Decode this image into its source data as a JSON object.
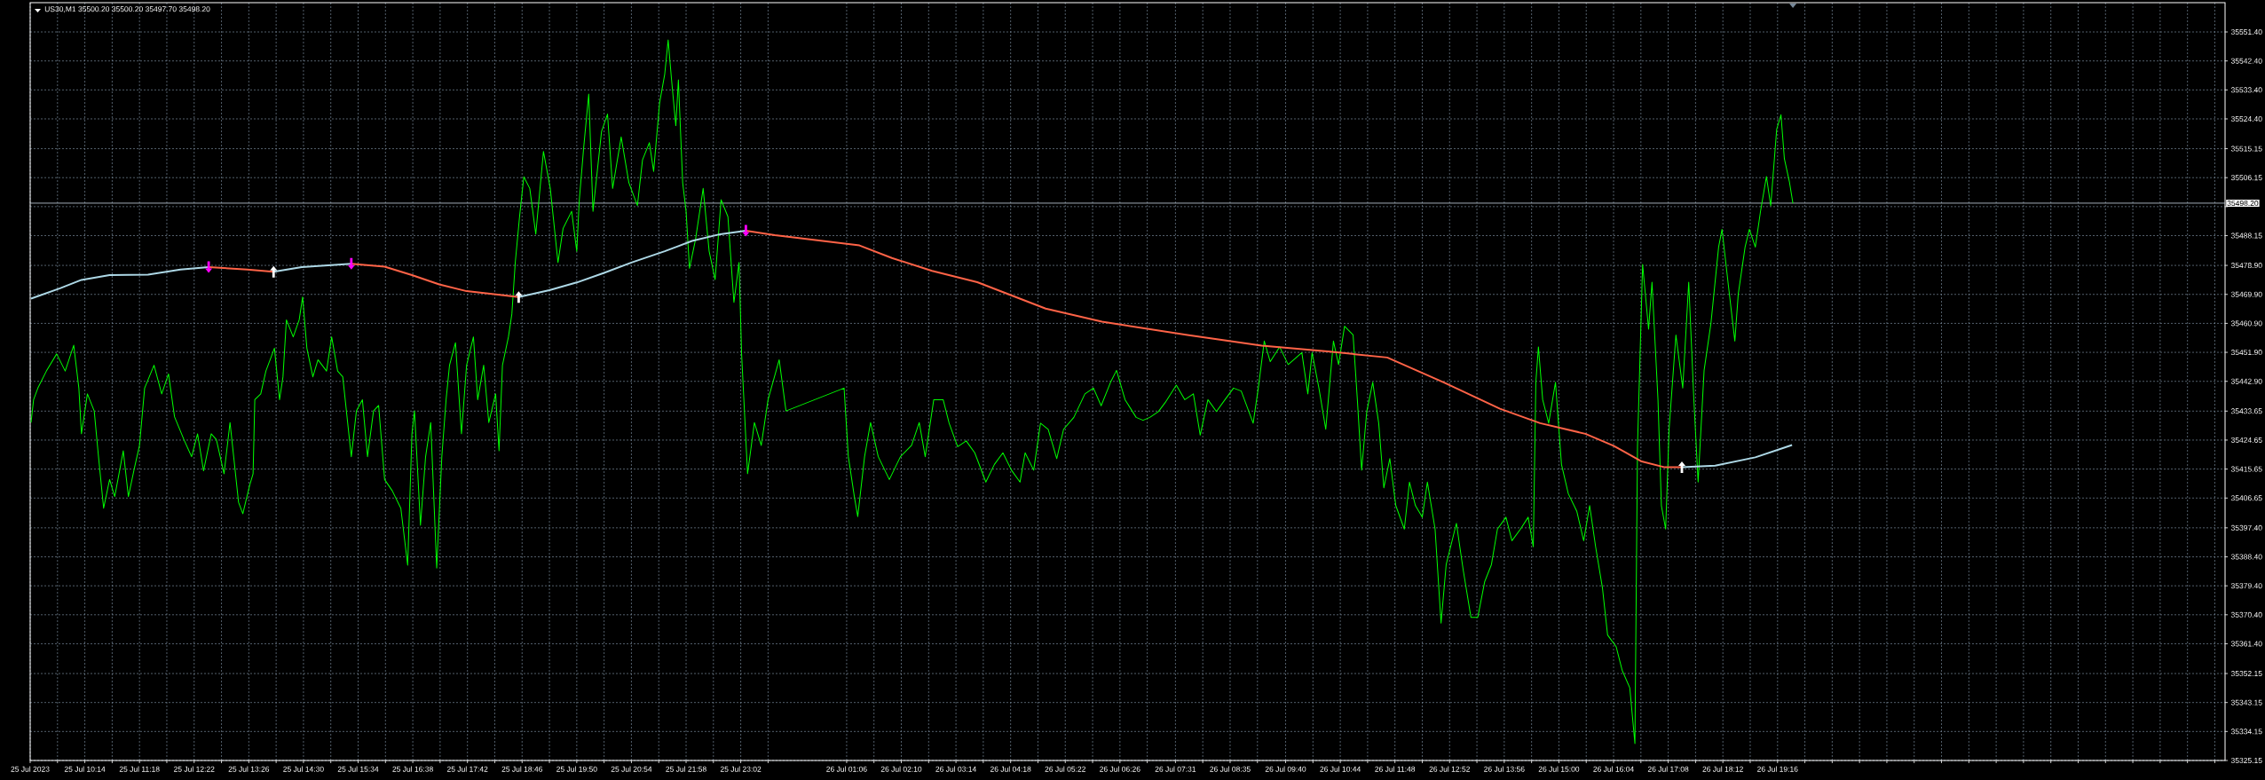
{
  "chart_data": {
    "type": "line",
    "title": "US30,M1 35500.20 35500.20 35497.70 35498.20",
    "xlim": [
      "2023-07-25T09:10",
      "2023-07-27T04:00"
    ],
    "ylim": [
      35325.15,
      35560.5
    ],
    "grid": true,
    "xticks": [
      {
        "value": "2023-07-25T09:10",
        "label": "25 Jul 2023"
      },
      {
        "value": "2023-07-25T09:42",
        "label": null
      },
      {
        "value": "2023-07-25T10:14",
        "label": "25 Jul 10:14"
      },
      {
        "value": "2023-07-25T10:46",
        "label": null
      },
      {
        "value": "2023-07-25T11:18",
        "label": "25 Jul 11:18"
      },
      {
        "value": "2023-07-25T11:50",
        "label": null
      },
      {
        "value": "2023-07-25T12:22",
        "label": "25 Jul 12:22"
      },
      {
        "value": "2023-07-25T12:54",
        "label": null
      },
      {
        "value": "2023-07-25T13:26",
        "label": "25 Jul 13:26"
      },
      {
        "value": "2023-07-25T13:58",
        "label": null
      },
      {
        "value": "2023-07-25T14:30",
        "label": "25 Jul 14:30"
      },
      {
        "value": "2023-07-25T15:02",
        "label": null
      },
      {
        "value": "2023-07-25T15:34",
        "label": "25 Jul 15:34"
      },
      {
        "value": "2023-07-25T16:06",
        "label": null
      },
      {
        "value": "2023-07-25T16:38",
        "label": "25 Jul 16:38"
      },
      {
        "value": "2023-07-25T17:10",
        "label": null
      },
      {
        "value": "2023-07-25T17:42",
        "label": "25 Jul 17:42"
      },
      {
        "value": "2023-07-25T18:14",
        "label": null
      },
      {
        "value": "2023-07-25T18:46",
        "label": "25 Jul 18:46"
      },
      {
        "value": "2023-07-25T19:18",
        "label": null
      },
      {
        "value": "2023-07-25T19:50",
        "label": "25 Jul 19:50"
      },
      {
        "value": "2023-07-25T20:22",
        "label": null
      },
      {
        "value": "2023-07-25T20:54",
        "label": "25 Jul 20:54"
      },
      {
        "value": "2023-07-25T21:26",
        "label": null
      },
      {
        "value": "2023-07-25T21:58",
        "label": "25 Jul 21:58"
      },
      {
        "value": "2023-07-25T22:30",
        "label": null
      },
      {
        "value": "2023-07-25T23:02",
        "label": "25 Jul 23:02"
      },
      {
        "value": "2023-07-25T23:34",
        "label": null
      },
      {
        "value": "2023-07-26T01:06",
        "label": "26 Jul 01:06"
      },
      {
        "value": "2023-07-26T01:38",
        "label": null
      },
      {
        "value": "2023-07-26T02:10",
        "label": "26 Jul 02:10"
      },
      {
        "value": "2023-07-26T02:42",
        "label": null
      },
      {
        "value": "2023-07-26T03:14",
        "label": "26 Jul 03:14"
      },
      {
        "value": "2023-07-26T03:46",
        "label": null
      },
      {
        "value": "2023-07-26T04:18",
        "label": "26 Jul 04:18"
      },
      {
        "value": "2023-07-26T04:50",
        "label": null
      },
      {
        "value": "2023-07-26T05:22",
        "label": "26 Jul 05:22"
      },
      {
        "value": "2023-07-26T05:54",
        "label": null
      },
      {
        "value": "2023-07-26T06:26",
        "label": "26 Jul 06:26"
      },
      {
        "value": "2023-07-26T06:58",
        "label": null
      },
      {
        "value": "2023-07-26T07:31",
        "label": "26 Jul 07:31"
      },
      {
        "value": "2023-07-26T08:03",
        "label": null
      },
      {
        "value": "2023-07-26T08:35",
        "label": "26 Jul 08:35"
      },
      {
        "value": "2023-07-26T09:07",
        "label": null
      },
      {
        "value": "2023-07-26T09:40",
        "label": "26 Jul 09:40"
      },
      {
        "value": "2023-07-26T10:12",
        "label": null
      },
      {
        "value": "2023-07-26T10:44",
        "label": "26 Jul 10:44"
      },
      {
        "value": "2023-07-26T11:16",
        "label": null
      },
      {
        "value": "2023-07-26T11:48",
        "label": "26 Jul 11:48"
      },
      {
        "value": "2023-07-26T12:20",
        "label": null
      },
      {
        "value": "2023-07-26T12:52",
        "label": "26 Jul 12:52"
      },
      {
        "value": "2023-07-26T13:24",
        "label": null
      },
      {
        "value": "2023-07-26T13:56",
        "label": "26 Jul 13:56"
      },
      {
        "value": "2023-07-26T14:28",
        "label": null
      },
      {
        "value": "2023-07-26T15:00",
        "label": "26 Jul 15:00"
      },
      {
        "value": "2023-07-26T15:32",
        "label": null
      },
      {
        "value": "2023-07-26T16:04",
        "label": "26 Jul 16:04"
      },
      {
        "value": "2023-07-26T16:36",
        "label": null
      },
      {
        "value": "2023-07-26T17:08",
        "label": "26 Jul 17:08"
      },
      {
        "value": "2023-07-26T17:40",
        "label": null
      },
      {
        "value": "2023-07-26T18:12",
        "label": "26 Jul 18:12"
      },
      {
        "value": "2023-07-26T18:44",
        "label": null
      },
      {
        "value": "2023-07-26T19:16",
        "label": "26 Jul 19:16"
      },
      {
        "value": "2023-07-26T19:48",
        "label": null
      },
      {
        "value": "2023-07-26T20:20",
        "label": null
      },
      {
        "value": "2023-07-26T20:52",
        "label": null
      },
      {
        "value": "2023-07-26T21:24",
        "label": null
      },
      {
        "value": "2023-07-26T21:56",
        "label": null
      },
      {
        "value": "2023-07-26T22:28",
        "label": null
      },
      {
        "value": "2023-07-26T23:00",
        "label": null
      },
      {
        "value": "2023-07-26T23:32",
        "label": null
      },
      {
        "value": "2023-07-27T00:04",
        "label": null
      },
      {
        "value": "2023-07-27T00:36",
        "label": null
      },
      {
        "value": "2023-07-27T01:08",
        "label": null
      },
      {
        "value": "2023-07-27T01:40",
        "label": null
      },
      {
        "value": "2023-07-27T02:12",
        "label": null
      },
      {
        "value": "2023-07-27T02:44",
        "label": null
      },
      {
        "value": "2023-07-27T03:16",
        "label": null
      },
      {
        "value": "2023-07-27T03:48",
        "label": null
      }
    ],
    "yticks": [
      {
        "value": 35551.4,
        "label": "35551.40"
      },
      {
        "value": 35542.4,
        "label": "35542.40"
      },
      {
        "value": 35533.4,
        "label": "35533.40"
      },
      {
        "value": 35524.4,
        "label": "35524.40"
      },
      {
        "value": 35515.15,
        "label": "35515.15"
      },
      {
        "value": 35506.15,
        "label": "35506.15"
      },
      {
        "value": 35497.15,
        "label": null
      },
      {
        "value": 35488.15,
        "label": "35488.15"
      },
      {
        "value": 35478.9,
        "label": "35478.90"
      },
      {
        "value": 35469.9,
        "label": "35469.90"
      },
      {
        "value": 35460.9,
        "label": "35460.90"
      },
      {
        "value": 35451.9,
        "label": "35451.90"
      },
      {
        "value": 35442.9,
        "label": "35442.90"
      },
      {
        "value": 35433.65,
        "label": "35433.65"
      },
      {
        "value": 35424.65,
        "label": "35424.65"
      },
      {
        "value": 35415.65,
        "label": "35415.65"
      },
      {
        "value": 35406.65,
        "label": "35406.65"
      },
      {
        "value": 35397.4,
        "label": "35397.40"
      },
      {
        "value": 35388.4,
        "label": "35388.40"
      },
      {
        "value": 35379.4,
        "label": "35379.40"
      },
      {
        "value": 35370.4,
        "label": "35370.40"
      },
      {
        "value": 35361.4,
        "label": "35361.40"
      },
      {
        "value": 35352.15,
        "label": "35352.15"
      },
      {
        "value": 35343.15,
        "label": "35343.15"
      },
      {
        "value": 35334.15,
        "label": "35334.15"
      },
      {
        "value": 35325.15,
        "label": "35325.15"
      }
    ],
    "ref_lines": [
      {
        "axis": "y",
        "value": 35498.2,
        "label": "35498.20",
        "color": "#b8c4d0"
      }
    ],
    "series": [
      {
        "type": "line",
        "color": "#00ff00",
        "x": [
          "2023-07-25T09:11",
          "2023-07-25T09:14",
          "2023-07-25T09:19",
          "2023-07-25T09:29",
          "2023-07-25T09:41",
          "2023-07-25T09:51",
          "2023-07-25T10:01",
          "2023-07-25T10:07",
          "2023-07-25T10:10",
          "2023-07-25T10:17",
          "2023-07-25T10:25",
          "2023-07-25T10:30",
          "2023-07-25T10:36",
          "2023-07-25T10:43",
          "2023-07-25T10:49",
          "2023-07-25T10:59",
          "2023-07-25T11:05",
          "2023-07-25T11:12",
          "2023-07-25T11:18",
          "2023-07-25T11:24",
          "2023-07-25T11:35",
          "2023-07-25T11:44",
          "2023-07-25T11:52",
          "2023-07-25T11:59",
          "2023-07-25T12:10",
          "2023-07-25T12:19",
          "2023-07-25T12:26",
          "2023-07-25T12:33",
          "2023-07-25T12:42",
          "2023-07-25T12:48",
          "2023-07-25T12:57",
          "2023-07-25T13:04",
          "2023-07-25T13:14",
          "2023-07-25T13:19",
          "2023-07-25T13:27",
          "2023-07-25T13:31",
          "2023-07-25T13:33",
          "2023-07-25T13:40",
          "2023-07-25T13:46",
          "2023-07-25T13:56",
          "2023-07-25T14:02",
          "2023-07-25T14:06",
          "2023-07-25T14:10",
          "2023-07-25T14:18",
          "2023-07-25T14:25",
          "2023-07-25T14:29",
          "2023-07-25T14:34",
          "2023-07-25T14:41",
          "2023-07-25T14:47",
          "2023-07-25T14:57",
          "2023-07-25T15:03",
          "2023-07-25T15:10",
          "2023-07-25T15:16",
          "2023-07-25T15:26",
          "2023-07-25T15:32",
          "2023-07-25T15:39",
          "2023-07-25T15:45",
          "2023-07-25T15:52",
          "2023-07-25T15:58",
          "2023-07-25T16:05",
          "2023-07-25T16:14",
          "2023-07-25T16:24",
          "2023-07-25T16:32",
          "2023-07-25T16:37",
          "2023-07-25T16:40",
          "2023-07-25T16:47",
          "2023-07-25T16:53",
          "2023-07-25T16:59",
          "2023-07-25T17:06",
          "2023-07-25T17:12",
          "2023-07-25T17:17",
          "2023-07-25T17:21",
          "2023-07-25T17:28",
          "2023-07-25T17:35",
          "2023-07-25T17:41",
          "2023-07-25T17:49",
          "2023-07-25T17:54",
          "2023-07-25T18:01",
          "2023-07-25T18:07",
          "2023-07-25T18:15",
          "2023-07-25T18:19",
          "2023-07-25T18:23",
          "2023-07-25T18:30",
          "2023-07-25T18:34",
          "2023-07-25T18:38",
          "2023-07-25T18:43",
          "2023-07-25T18:48",
          "2023-07-25T18:55",
          "2023-07-25T19:02",
          "2023-07-25T19:11",
          "2023-07-25T19:19",
          "2023-07-25T19:28",
          "2023-07-25T19:34",
          "2023-07-25T19:44",
          "2023-07-25T19:50",
          "2023-07-25T19:53",
          "2023-07-25T19:58",
          "2023-07-25T20:04",
          "2023-07-25T20:09",
          "2023-07-25T20:19",
          "2023-07-25T20:26",
          "2023-07-25T20:32",
          "2023-07-25T20:42",
          "2023-07-25T20:51",
          "2023-07-25T21:01",
          "2023-07-25T21:07",
          "2023-07-25T21:15",
          "2023-07-25T21:20",
          "2023-07-25T21:27",
          "2023-07-25T21:33",
          "2023-07-25T21:37",
          "2023-07-25T21:41",
          "2023-07-25T21:46",
          "2023-07-25T21:49",
          "2023-07-25T21:54",
          "2023-07-25T21:58",
          "2023-07-25T22:02",
          "2023-07-25T22:09",
          "2023-07-25T22:18",
          "2023-07-25T22:25",
          "2023-07-25T22:32",
          "2023-07-25T22:39",
          "2023-07-25T22:47",
          "2023-07-25T22:54",
          "2023-07-25T23:00",
          "2023-07-25T23:03",
          "2023-07-25T23:10",
          "2023-07-25T23:18",
          "2023-07-25T23:26",
          "2023-07-25T23:34",
          "2023-07-25T23:47",
          "2023-07-25T23:55",
          "2023-07-26T01:03",
          "2023-07-26T01:08",
          "2023-07-26T01:15",
          "2023-07-26T01:19",
          "2023-07-26T01:27",
          "2023-07-26T01:34",
          "2023-07-26T01:43",
          "2023-07-26T01:56",
          "2023-07-26T02:09",
          "2023-07-26T02:22",
          "2023-07-26T02:31",
          "2023-07-26T02:38",
          "2023-07-26T02:48",
          "2023-07-26T02:59",
          "2023-07-26T03:06",
          "2023-07-26T03:16",
          "2023-07-26T03:26",
          "2023-07-26T03:36",
          "2023-07-26T03:49",
          "2023-07-26T03:59",
          "2023-07-26T04:09",
          "2023-07-26T04:19",
          "2023-07-26T04:29",
          "2023-07-26T04:35",
          "2023-07-26T04:45",
          "2023-07-26T04:53",
          "2023-07-26T05:02",
          "2023-07-26T05:12",
          "2023-07-26T05:20",
          "2023-07-26T05:32",
          "2023-07-26T05:45",
          "2023-07-26T05:55",
          "2023-07-26T06:04",
          "2023-07-26T06:15",
          "2023-07-26T06:22",
          "2023-07-26T06:32",
          "2023-07-26T06:45",
          "2023-07-26T06:53",
          "2023-07-26T07:01",
          "2023-07-26T07:11",
          "2023-07-26T07:19",
          "2023-07-26T07:32",
          "2023-07-26T07:42",
          "2023-07-26T07:52",
          "2023-07-26T08:00",
          "2023-07-26T08:09",
          "2023-07-26T08:19",
          "2023-07-26T08:29",
          "2023-07-26T08:39",
          "2023-07-26T08:48",
          "2023-07-26T09:02",
          "2023-07-26T09:08",
          "2023-07-26T09:15",
          "2023-07-26T09:22",
          "2023-07-26T09:33",
          "2023-07-26T09:43",
          "2023-07-26T09:59",
          "2023-07-26T10:06",
          "2023-07-26T10:11",
          "2023-07-26T10:19",
          "2023-07-26T10:27",
          "2023-07-26T10:36",
          "2023-07-26T10:42",
          "2023-07-26T10:49",
          "2023-07-26T10:59",
          "2023-07-26T11:04",
          "2023-07-26T11:09",
          "2023-07-26T11:15",
          "2023-07-26T11:22",
          "2023-07-26T11:29",
          "2023-07-26T11:35",
          "2023-07-26T11:42",
          "2023-07-26T11:49",
          "2023-07-26T11:59",
          "2023-07-26T12:05",
          "2023-07-26T12:12",
          "2023-07-26T12:20",
          "2023-07-26T12:26",
          "2023-07-26T12:35",
          "2023-07-26T12:42",
          "2023-07-26T12:48",
          "2023-07-26T13:00",
          "2023-07-26T13:08",
          "2023-07-26T13:17",
          "2023-07-26T13:25",
          "2023-07-26T13:33",
          "2023-07-26T13:41",
          "2023-07-26T13:48",
          "2023-07-26T13:58",
          "2023-07-26T14:05",
          "2023-07-26T14:15",
          "2023-07-26T14:24",
          "2023-07-26T14:30",
          "2023-07-26T14:33",
          "2023-07-26T14:36",
          "2023-07-26T14:41",
          "2023-07-26T14:48",
          "2023-07-26T14:56",
          "2023-07-26T15:03",
          "2023-07-26T15:11",
          "2023-07-26T15:21",
          "2023-07-26T15:29",
          "2023-07-26T15:36",
          "2023-07-26T15:43",
          "2023-07-26T15:51",
          "2023-07-26T15:57",
          "2023-07-26T16:07",
          "2023-07-26T16:14",
          "2023-07-26T16:23",
          "2023-07-26T16:29",
          "2023-07-26T16:32",
          "2023-07-26T16:38",
          "2023-07-26T16:45",
          "2023-07-26T16:49",
          "2023-07-26T16:56",
          "2023-07-26T17:00",
          "2023-07-26T17:05",
          "2023-07-26T17:09",
          "2023-07-26T17:17",
          "2023-07-26T17:25",
          "2023-07-26T17:32",
          "2023-07-26T17:38",
          "2023-07-26T17:43",
          "2023-07-26T17:50",
          "2023-07-26T17:58",
          "2023-07-26T18:07",
          "2023-07-26T18:11",
          "2023-07-26T18:18",
          "2023-07-26T18:26",
          "2023-07-26T18:30",
          "2023-07-26T18:38",
          "2023-07-26T18:43",
          "2023-07-26T18:50",
          "2023-07-26T18:56",
          "2023-07-26T19:03",
          "2023-07-26T19:08",
          "2023-07-26T19:15",
          "2023-07-26T19:20",
          "2023-07-26T19:24",
          "2023-07-26T19:30",
          "2023-07-26T19:34"
        ],
        "values": [
          35430.1,
          35437.2,
          35440.8,
          35446.1,
          35451.4,
          35446.1,
          35454.1,
          35440.8,
          35426.6,
          35439.0,
          35433.7,
          35419.5,
          35403.5,
          35412.4,
          35407.1,
          35421.3,
          35407.1,
          35415.9,
          35423.0,
          35440.8,
          35447.9,
          35439.0,
          35445.2,
          35431.9,
          35424.8,
          35419.5,
          35426.6,
          35415.1,
          35426.6,
          35424.8,
          35414.2,
          35430.1,
          35405.3,
          35401.8,
          35410.6,
          35414.2,
          35437.2,
          35439.0,
          35446.1,
          35453.2,
          35437.2,
          35444.3,
          35462.0,
          35456.7,
          35462.0,
          35469.1,
          35453.2,
          35444.3,
          35449.6,
          35446.1,
          35456.7,
          35446.1,
          35444.3,
          35419.5,
          35433.7,
          35437.2,
          35419.5,
          35433.7,
          35435.4,
          35412.4,
          35408.9,
          35403.5,
          35385.8,
          35426.6,
          35433.7,
          35398.2,
          35419.5,
          35430.1,
          35384.9,
          35419.5,
          35437.2,
          35447.9,
          35454.9,
          35426.6,
          35447.9,
          35456.7,
          35437.2,
          35447.9,
          35430.1,
          35439.0,
          35421.3,
          35447.9,
          35456.7,
          35463.8,
          35479.8,
          35494.0,
          35506.4,
          35502.8,
          35488.6,
          35514.3,
          35502.8,
          35479.8,
          35490.4,
          35495.7,
          35483.3,
          35499.3,
          35515.2,
          35532.1,
          35495.7,
          35520.5,
          35525.9,
          35502.8,
          35518.8,
          35504.6,
          35497.5,
          35511.7,
          35517.0,
          35508.1,
          35529.4,
          35538.3,
          35548.9,
          35536.5,
          35522.3,
          35536.5,
          35504.6,
          35495.7,
          35478.0,
          35486.9,
          35502.8,
          35483.3,
          35474.5,
          35499.3,
          35494.0,
          35467.4,
          35479.8,
          35451.4,
          35414.2,
          35430.1,
          35423.0,
          35437.2,
          35449.6,
          35433.7,
          35440.8,
          35419.5,
          35407.1,
          35400.9,
          35419.5,
          35430.1,
          35419.5,
          35412.4,
          35419.5,
          35423.0,
          35430.1,
          35419.5,
          35437.2,
          35437.2,
          35429.9,
          35422.6,
          35424.4,
          35420.7,
          35411.6,
          35417.1,
          35420.7,
          35415.3,
          35411.6,
          35420.7,
          35415.3,
          35429.9,
          35428.0,
          35418.9,
          35428.0,
          35431.7,
          35439.0,
          35440.8,
          35435.3,
          35442.6,
          35446.3,
          35437.2,
          35431.7,
          35430.8,
          35431.7,
          35433.5,
          35436.3,
          35441.7,
          35437.2,
          35439.0,
          35426.2,
          35437.2,
          35433.5,
          35437.2,
          35440.8,
          35439.9,
          35429.9,
          35440.8,
          35455.4,
          35449.0,
          35453.6,
          35448.1,
          35451.8,
          35439.0,
          35451.8,
          35440.8,
          35428.0,
          35455.4,
          35448.1,
          35460.0,
          35457.3,
          35437.2,
          35415.3,
          35433.5,
          35442.6,
          35429.9,
          35409.8,
          35418.9,
          35404.3,
          35397.0,
          35411.6,
          35404.3,
          35400.7,
          35411.6,
          35397.0,
          35367.8,
          35386.0,
          35398.8,
          35384.2,
          35369.6,
          35369.6,
          35380.6,
          35386.0,
          35397.0,
          35400.7,
          35393.4,
          35397.0,
          35400.7,
          35391.5,
          35442.6,
          35453.6,
          35437.2,
          35429.9,
          35442.6,
          35417.1,
          35408.0,
          35402.5,
          35393.4,
          35404.3,
          35391.5,
          35378.7,
          35364.1,
          35360.5,
          35353.2,
          35347.7,
          35330.4,
          35422.6,
          35479.2,
          35459.1,
          35473.7,
          35437.2,
          35404.3,
          35397.0,
          35428.0,
          35457.3,
          35440.8,
          35473.7,
          35437.2,
          35411.6,
          35446.3,
          35460.9,
          35484.6,
          35490.1,
          35473.7,
          35455.4,
          35470.0,
          35484.6,
          35490.1,
          35484.6,
          35495.6,
          35506.5,
          35497.4,
          35521.2,
          35525.7,
          35512.0,
          35504.7,
          35498.2
        ]
      },
      {
        "type": "line",
        "color": "#add8e6",
        "x": [
          "2023-07-25T09:11",
          "2023-07-25T09:45",
          "2023-07-25T10:10",
          "2023-07-25T10:43",
          "2023-07-25T11:28",
          "2023-07-25T12:06",
          "2023-07-25T12:39"
        ],
        "values": [
          35468.6,
          35471.8,
          35474.4,
          35475.9,
          35476.0,
          35477.6,
          35478.4
        ]
      },
      {
        "type": "line",
        "color": "#ff6347",
        "x": [
          "2023-07-25T12:39",
          "2023-07-25T13:24",
          "2023-07-25T13:55"
        ],
        "values": [
          35478.4,
          35477.6,
          35476.9
        ]
      },
      {
        "type": "line",
        "color": "#add8e6",
        "x": [
          "2023-07-25T13:55",
          "2023-07-25T14:28",
          "2023-07-25T15:26"
        ],
        "values": [
          35476.9,
          35478.4,
          35479.4
        ]
      },
      {
        "type": "line",
        "color": "#ff6347",
        "x": [
          "2023-07-25T15:26",
          "2023-07-25T16:05",
          "2023-07-25T16:37",
          "2023-07-25T17:09",
          "2023-07-25T17:41",
          "2023-07-25T18:13",
          "2023-07-25T18:42"
        ],
        "values": [
          35479.4,
          35478.5,
          35475.9,
          35473.0,
          35470.9,
          35470.0,
          35469.1
        ]
      },
      {
        "type": "line",
        "color": "#add8e6",
        "x": [
          "2023-07-25T18:42",
          "2023-07-25T19:18",
          "2023-07-25T19:50",
          "2023-07-25T20:22",
          "2023-07-25T20:54",
          "2023-07-25T21:33",
          "2023-07-25T22:05",
          "2023-07-25T22:38",
          "2023-07-25T23:08"
        ],
        "values": [
          35469.1,
          35471.2,
          35473.6,
          35476.6,
          35479.8,
          35483.3,
          35486.5,
          35488.6,
          35489.7
        ]
      },
      {
        "type": "line",
        "color": "#ff6347",
        "x": [
          "2023-07-25T23:08",
          "2023-07-25T23:42",
          "2023-07-26T01:21",
          "2023-07-26T01:59",
          "2023-07-26T02:46",
          "2023-07-26T03:39",
          "2023-07-26T04:59",
          "2023-07-26T06:05",
          "2023-07-26T07:45",
          "2023-07-26T09:12",
          "2023-07-26T10:32",
          "2023-07-26T11:39",
          "2023-07-26T12:45",
          "2023-07-26T13:51",
          "2023-07-26T14:38",
          "2023-07-26T15:31",
          "2023-07-26T16:04",
          "2023-07-26T16:37",
          "2023-07-26T17:04",
          "2023-07-26T17:24"
        ],
        "values": [
          35489.7,
          35488.3,
          35485.1,
          35481.2,
          35477.2,
          35473.7,
          35465.5,
          35461.4,
          35457.3,
          35454.0,
          35452.1,
          35450.3,
          35442.6,
          35434.4,
          35429.9,
          35426.6,
          35422.9,
          35418.0,
          35416.2,
          35416.2
        ]
      },
      {
        "type": "line",
        "color": "#add8e6",
        "x": [
          "2023-07-26T17:24",
          "2023-07-26T18:03",
          "2023-07-26T18:50",
          "2023-07-26T19:33"
        ],
        "values": [
          35416.2,
          35416.7,
          35419.3,
          35423.1
        ]
      },
      {
        "type": "scatter",
        "color": "#ffffff",
        "marker": "triangle",
        "x": [
          "2023-07-25T13:55",
          "2023-07-25T18:42",
          "2023-07-26T17:24"
        ],
        "values": [
          35476.9,
          35469.1,
          35416.2
        ]
      },
      {
        "type": "scatter",
        "color": "#ff00ff",
        "marker": "triangle",
        "x": [
          "2023-07-25T12:39",
          "2023-07-25T15:26",
          "2023-07-25T23:08"
        ],
        "values": [
          35478.4,
          35479.4,
          35489.7
        ]
      }
    ]
  }
}
